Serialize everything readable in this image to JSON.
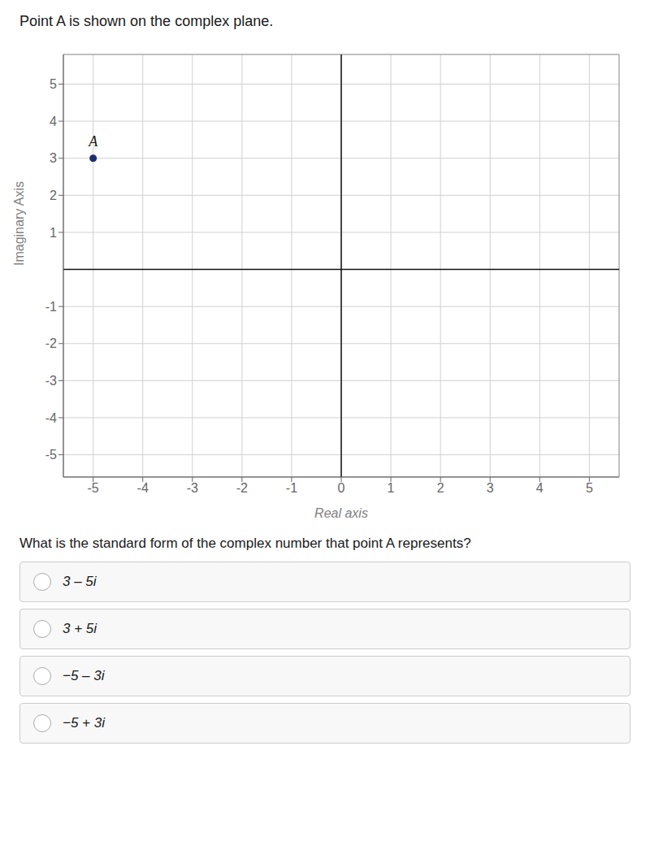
{
  "chart_data": {
    "type": "scatter",
    "title": "Point A is shown on the complex plane.",
    "x_label": "Real axis",
    "y_label": "Imaginary Axis",
    "x": [
      -5
    ],
    "values": [
      3
    ],
    "labels": [
      "A"
    ],
    "color": "#1e2d6b",
    "xlim": [
      -5.6,
      5.6
    ],
    "ylim": [
      -5.6,
      5.8
    ],
    "xticks": [
      -5,
      -4,
      -3,
      -2,
      -1,
      0,
      1,
      2,
      3,
      4,
      5
    ],
    "yticks": [
      -5,
      -4,
      -3,
      -2,
      -1,
      1,
      2,
      3,
      4,
      5
    ],
    "grid": true,
    "question": "What is the standard form of the complex number that point A represents?",
    "choices": [
      "3 – 5i",
      "3 + 5i",
      "−5 – 3i",
      "−5 + 3i"
    ]
  }
}
